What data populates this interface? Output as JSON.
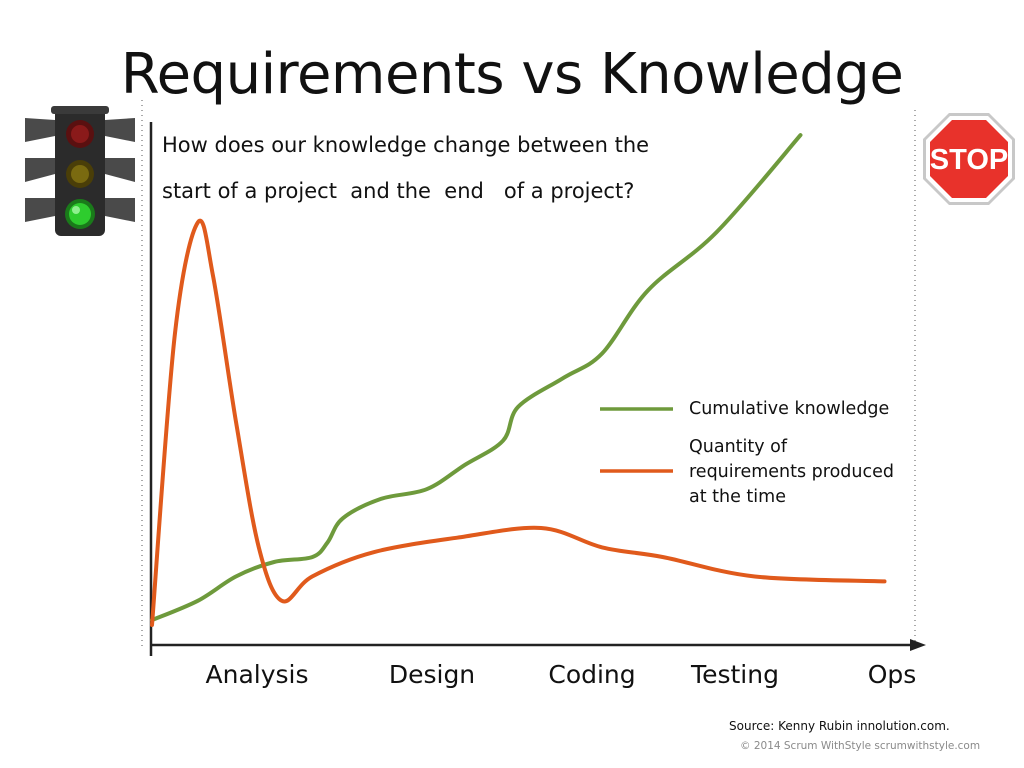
{
  "slide": {
    "title": "Requirements vs Knowledge",
    "question_line1": "How does our knowledge change between the",
    "question_line2": "start of a project  and the  end   of a project?",
    "source": "Source: Kenny Rubin innolution.com.",
    "copyright": "© 2014 Scrum WithStyle scrumwithstyle.com",
    "stop_sign_text": "STOP"
  },
  "colors": {
    "knowledge": "#6e9a3c",
    "requirements": "#e05a1c",
    "axis": "#222222",
    "guide": "#aaaaaa",
    "stop_red": "#e8322b"
  },
  "icons": [
    "traffic-light-icon",
    "stop-sign-icon"
  ],
  "chart_data": {
    "type": "line",
    "categories": [
      "Analysis",
      "Design",
      "Coding",
      "Testing",
      "Ops"
    ],
    "x_range": [
      0,
      100
    ],
    "y_range": [
      0,
      100
    ],
    "grid": false,
    "legend_position": "right",
    "series": [
      {
        "name": "Cumulative knowledge",
        "color": "#6e9a3c",
        "points": [
          [
            0,
            1
          ],
          [
            6,
            5
          ],
          [
            11,
            10
          ],
          [
            16,
            13
          ],
          [
            21,
            14
          ],
          [
            23,
            17
          ],
          [
            25,
            22
          ],
          [
            30,
            26
          ],
          [
            36,
            28
          ],
          [
            41,
            33
          ],
          [
            46,
            38
          ],
          [
            48,
            45
          ],
          [
            54,
            51
          ],
          [
            59,
            56
          ],
          [
            65,
            69
          ],
          [
            74,
            81
          ],
          [
            85,
            101
          ]
        ]
      },
      {
        "name": "Quantity of\nrequirements produced\nat the time",
        "color": "#e05a1c",
        "points": [
          [
            0,
            0
          ],
          [
            3,
            60
          ],
          [
            6,
            83
          ],
          [
            8,
            72
          ],
          [
            11,
            42
          ],
          [
            14,
            16
          ],
          [
            17,
            5
          ],
          [
            21,
            10
          ],
          [
            29,
            15
          ],
          [
            40,
            18
          ],
          [
            51,
            20
          ],
          [
            59,
            16
          ],
          [
            67,
            14
          ],
          [
            79,
            10
          ],
          [
            96,
            9
          ]
        ]
      }
    ]
  }
}
